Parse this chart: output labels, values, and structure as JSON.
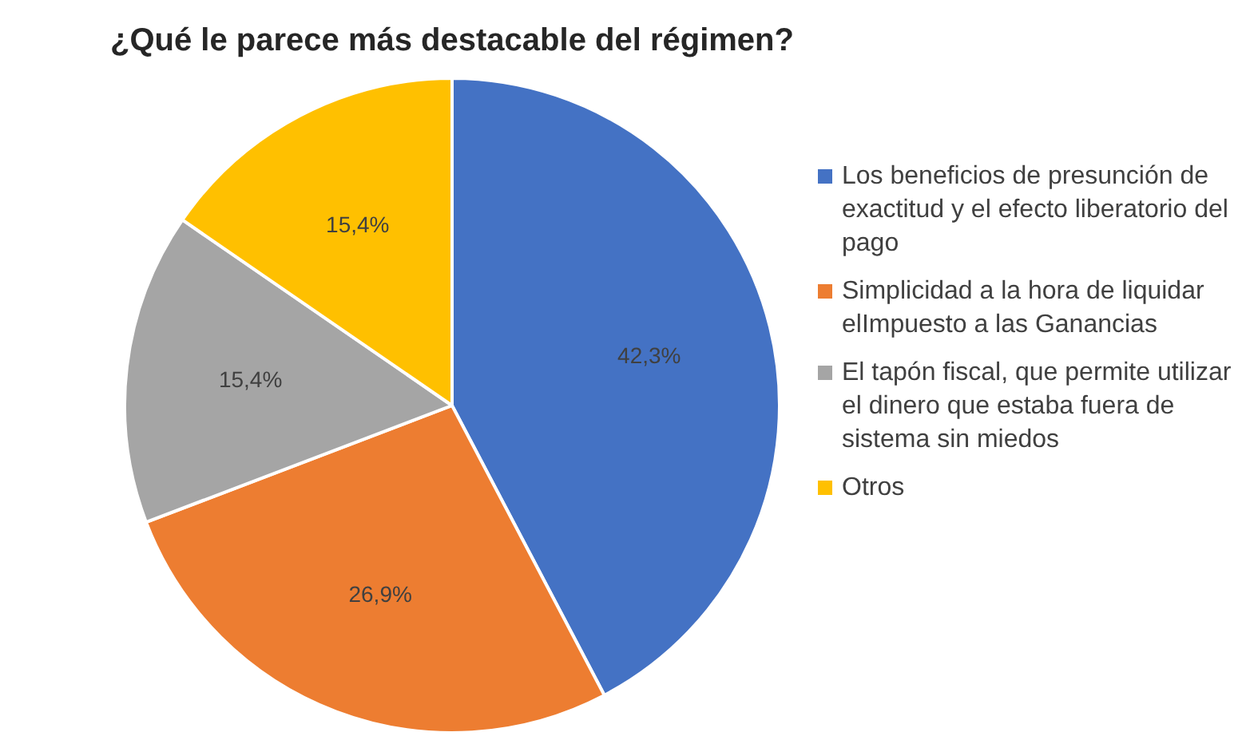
{
  "chart_data": {
    "type": "pie",
    "title": "¿Qué le parece más destacable del régimen?",
    "categories": [
      "Los beneficios de presunción de exactitud y el efecto liberatorio del pago",
      "Simplicidad a la hora de liquidar elImpuesto a las Ganancias",
      "El tapón fiscal, que permite utilizar el dinero que estaba fuera de sistema sin miedos",
      "Otros"
    ],
    "values": [
      42.3,
      26.9,
      15.4,
      15.4
    ],
    "colors": [
      "#4472c4",
      "#ed7d31",
      "#a5a5a5",
      "#ffc000"
    ],
    "value_labels": [
      "42,3%",
      "26,9%",
      "15,4%",
      "15,4%"
    ],
    "legend": "right"
  }
}
